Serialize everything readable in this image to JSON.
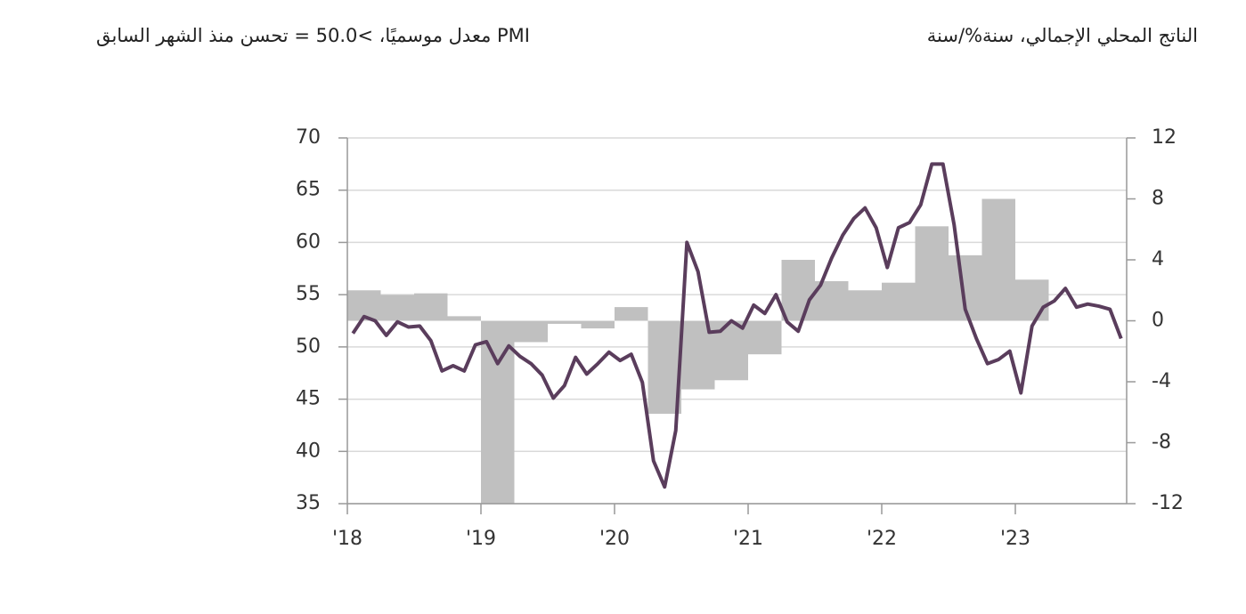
{
  "chart_data": {
    "type": "bar+line",
    "xlim": [
      2018,
      2023.8333
    ],
    "xticks": [
      {
        "value": 2018,
        "label": "'18"
      },
      {
        "value": 2019,
        "label": "'19"
      },
      {
        "value": 2020,
        "label": "'20"
      },
      {
        "value": 2021,
        "label": "'21"
      },
      {
        "value": 2022,
        "label": "'22"
      },
      {
        "value": 2023,
        "label": "'23"
      }
    ],
    "ylim": [
      35,
      70
    ],
    "yticks": [
      35,
      40,
      45,
      50,
      55,
      60,
      65,
      70
    ],
    "y2lim": [
      -12,
      12
    ],
    "y2ticks": [
      -12,
      -8,
      -4,
      0,
      4,
      8,
      12
    ],
    "grid": true,
    "series": [
      {
        "name": "الناتج المحلي الإجمالي، سنة%/سنة",
        "type": "bar",
        "axis": "y2",
        "color": "#c0c0c0",
        "values": [
          2.0,
          1.7,
          1.8,
          0.3,
          -12,
          -1.4,
          -0.2,
          -0.5,
          0.9,
          -6.1,
          -4.5,
          -3.9,
          -2.2,
          4.0,
          2.6,
          2.0,
          2.5,
          6.2,
          4.3,
          8.0,
          2.7
        ]
      },
      {
        "name": "PMI معدل موسميًا، >50.0 = تحسن منذ الشهر السابق",
        "type": "line",
        "color": "#5a3d5c",
        "values": [
          51.3,
          52.9,
          52.5,
          51.1,
          52.4,
          51.9,
          52.0,
          50.6,
          47.7,
          48.2,
          47.7,
          50.2,
          50.5,
          48.4,
          50.1,
          49.1,
          48.4,
          47.3,
          45.1,
          46.3,
          49.0,
          47.4,
          48.4,
          49.5,
          48.7,
          49.3,
          46.6,
          39.1,
          36.6,
          42.0,
          60.0,
          57.2,
          51.4,
          51.5,
          52.5,
          51.8,
          54.0,
          53.2,
          55.0,
          52.4,
          51.5,
          54.5,
          55.9,
          58.5,
          60.7,
          62.3,
          63.3,
          61.4,
          57.6,
          61.4,
          61.9,
          63.6,
          67.5,
          67.5,
          61.7,
          53.6,
          50.8,
          48.4,
          48.8,
          49.6,
          45.6,
          52.0,
          53.8,
          54.4,
          55.6,
          53.8,
          54.1,
          53.9,
          53.6,
          50.8
        ]
      }
    ]
  }
}
